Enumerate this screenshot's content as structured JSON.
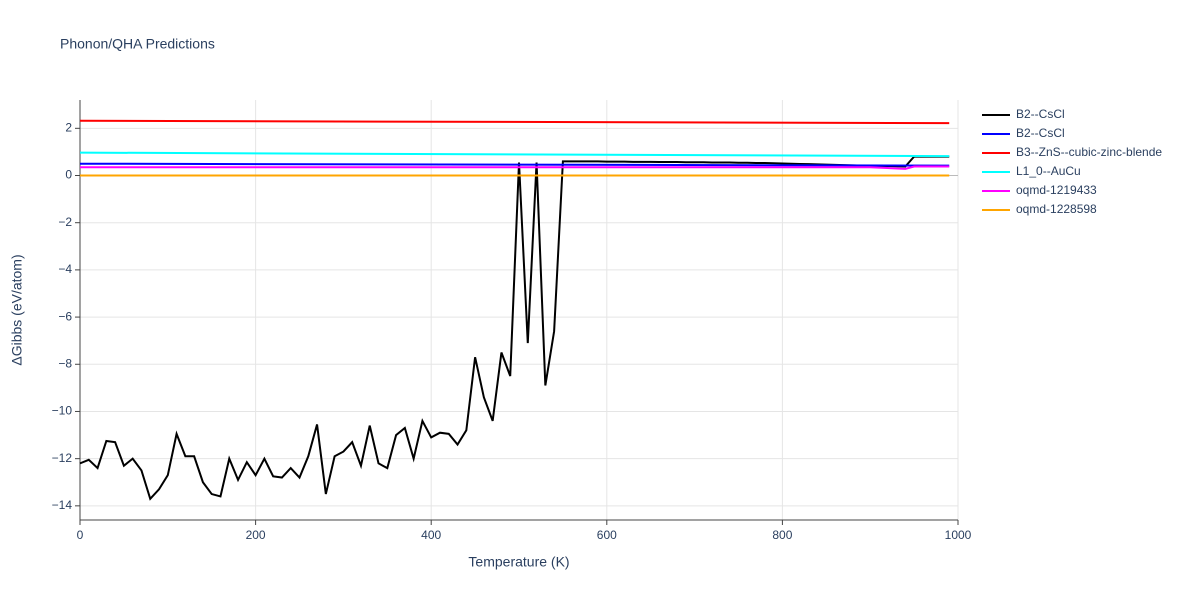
{
  "chart_data": {
    "type": "line",
    "title": "Phonon/QHA Predictions",
    "x_label": "Temperature (K)",
    "y_label": "ΔGibbs (eV/atom)",
    "xlim": [
      0,
      1000
    ],
    "xticks": [
      0,
      200,
      400,
      600,
      800,
      1000
    ],
    "ylim": [
      -14.6,
      3.2
    ],
    "yticks": [
      {
        "value": -14,
        "label": "−14"
      },
      {
        "value": -12,
        "label": "−12"
      },
      {
        "value": -10,
        "label": "−10"
      },
      {
        "value": -8,
        "label": "−8"
      },
      {
        "value": -6,
        "label": "−6"
      },
      {
        "value": -4,
        "label": "−4"
      },
      {
        "value": -2,
        "label": "−2"
      },
      0,
      2
    ],
    "grid": true,
    "legend": "right",
    "series": [
      {
        "name": "B2--CsCl",
        "color": "#000000",
        "x": [
          0,
          10,
          20,
          30,
          40,
          50,
          60,
          70,
          80,
          90,
          100,
          110,
          120,
          130,
          140,
          150,
          160,
          170,
          180,
          190,
          200,
          210,
          220,
          230,
          240,
          250,
          260,
          270,
          280,
          290,
          300,
          310,
          320,
          330,
          340,
          350,
          360,
          370,
          380,
          390,
          400,
          410,
          420,
          430,
          440,
          450,
          460,
          470,
          480,
          490,
          500,
          510,
          520,
          530,
          540,
          550,
          560,
          570,
          580,
          590,
          600,
          610,
          620,
          630,
          640,
          650,
          660,
          670,
          680,
          690,
          700,
          710,
          720,
          730,
          740,
          750,
          760,
          770,
          780,
          790,
          800,
          810,
          820,
          830,
          840,
          850,
          860,
          870,
          880,
          890,
          900,
          910,
          920,
          930,
          940,
          950,
          960,
          970,
          980,
          990
        ],
        "values": [
          -12.2,
          -12.05,
          -12.4,
          -11.25,
          -11.3,
          -12.3,
          -12.0,
          -12.5,
          -13.7,
          -13.3,
          -12.7,
          -10.95,
          -11.9,
          -11.9,
          -13.0,
          -13.5,
          -13.6,
          -12.0,
          -12.9,
          -12.15,
          -12.7,
          -12.0,
          -12.75,
          -12.8,
          -12.4,
          -12.8,
          -11.9,
          -10.55,
          -13.5,
          -11.9,
          -11.7,
          -11.3,
          -12.3,
          -10.6,
          -12.2,
          -12.4,
          -11.0,
          -10.7,
          -12.0,
          -10.4,
          -11.1,
          -10.9,
          -10.95,
          -11.4,
          -10.8,
          -7.7,
          -9.4,
          -10.4,
          -7.5,
          -8.5,
          0.55,
          -7.1,
          0.55,
          -8.9,
          -6.6,
          0.6,
          0.6,
          0.6,
          0.6,
          0.6,
          0.59,
          0.59,
          0.59,
          0.58,
          0.58,
          0.58,
          0.57,
          0.57,
          0.57,
          0.56,
          0.56,
          0.56,
          0.55,
          0.55,
          0.55,
          0.54,
          0.54,
          0.53,
          0.53,
          0.52,
          0.51,
          0.5,
          0.49,
          0.48,
          0.47,
          0.46,
          0.45,
          0.44,
          0.43,
          0.42,
          0.41,
          0.4,
          0.4,
          0.39,
          0.38,
          0.8,
          0.8,
          0.8,
          0.8,
          0.8
        ]
      },
      {
        "name": "B2--CsCl",
        "color": "#0000ff",
        "x": [
          0,
          990
        ],
        "values": [
          0.5,
          0.42
        ]
      },
      {
        "name": "B3--ZnS--cubic-zinc-blende",
        "color": "#ff0000",
        "x": [
          0,
          990
        ],
        "values": [
          2.32,
          2.22
        ]
      },
      {
        "name": "L1_0--AuCu",
        "color": "#00ffff",
        "x": [
          0,
          990
        ],
        "values": [
          0.97,
          0.82
        ]
      },
      {
        "name": "oqmd-1219433",
        "color": "#ff00ff",
        "x": [
          0,
          900,
          940,
          950,
          990
        ],
        "values": [
          0.35,
          0.35,
          0.28,
          0.38,
          0.38
        ]
      },
      {
        "name": "oqmd-1228598",
        "color": "#ffa500",
        "x": [
          0,
          990
        ],
        "values": [
          0,
          0
        ]
      }
    ]
  }
}
